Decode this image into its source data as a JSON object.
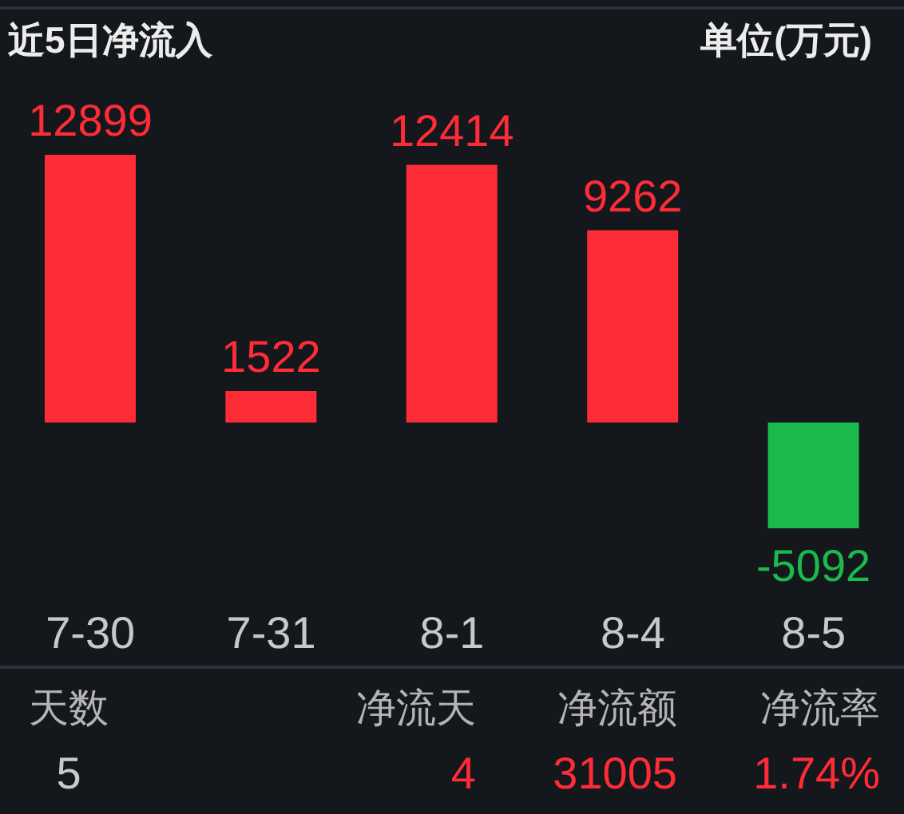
{
  "chart_data": {
    "type": "bar",
    "title": "近5日净流入",
    "subtitle": "单位(万元)",
    "categories": [
      "7-30",
      "7-31",
      "8-1",
      "8-4",
      "8-5"
    ],
    "values": [
      12899,
      1522,
      12414,
      9262,
      -5092
    ],
    "colors": [
      "#fe2c36",
      "#fe2c36",
      "#fe2c36",
      "#fe2c36",
      "#1aba4d"
    ],
    "data_labels": true,
    "annotations": [
      "天数",
      "5",
      "净流天",
      "4",
      "净流额",
      "31005",
      "净流率",
      "1.74%"
    ]
  }
}
